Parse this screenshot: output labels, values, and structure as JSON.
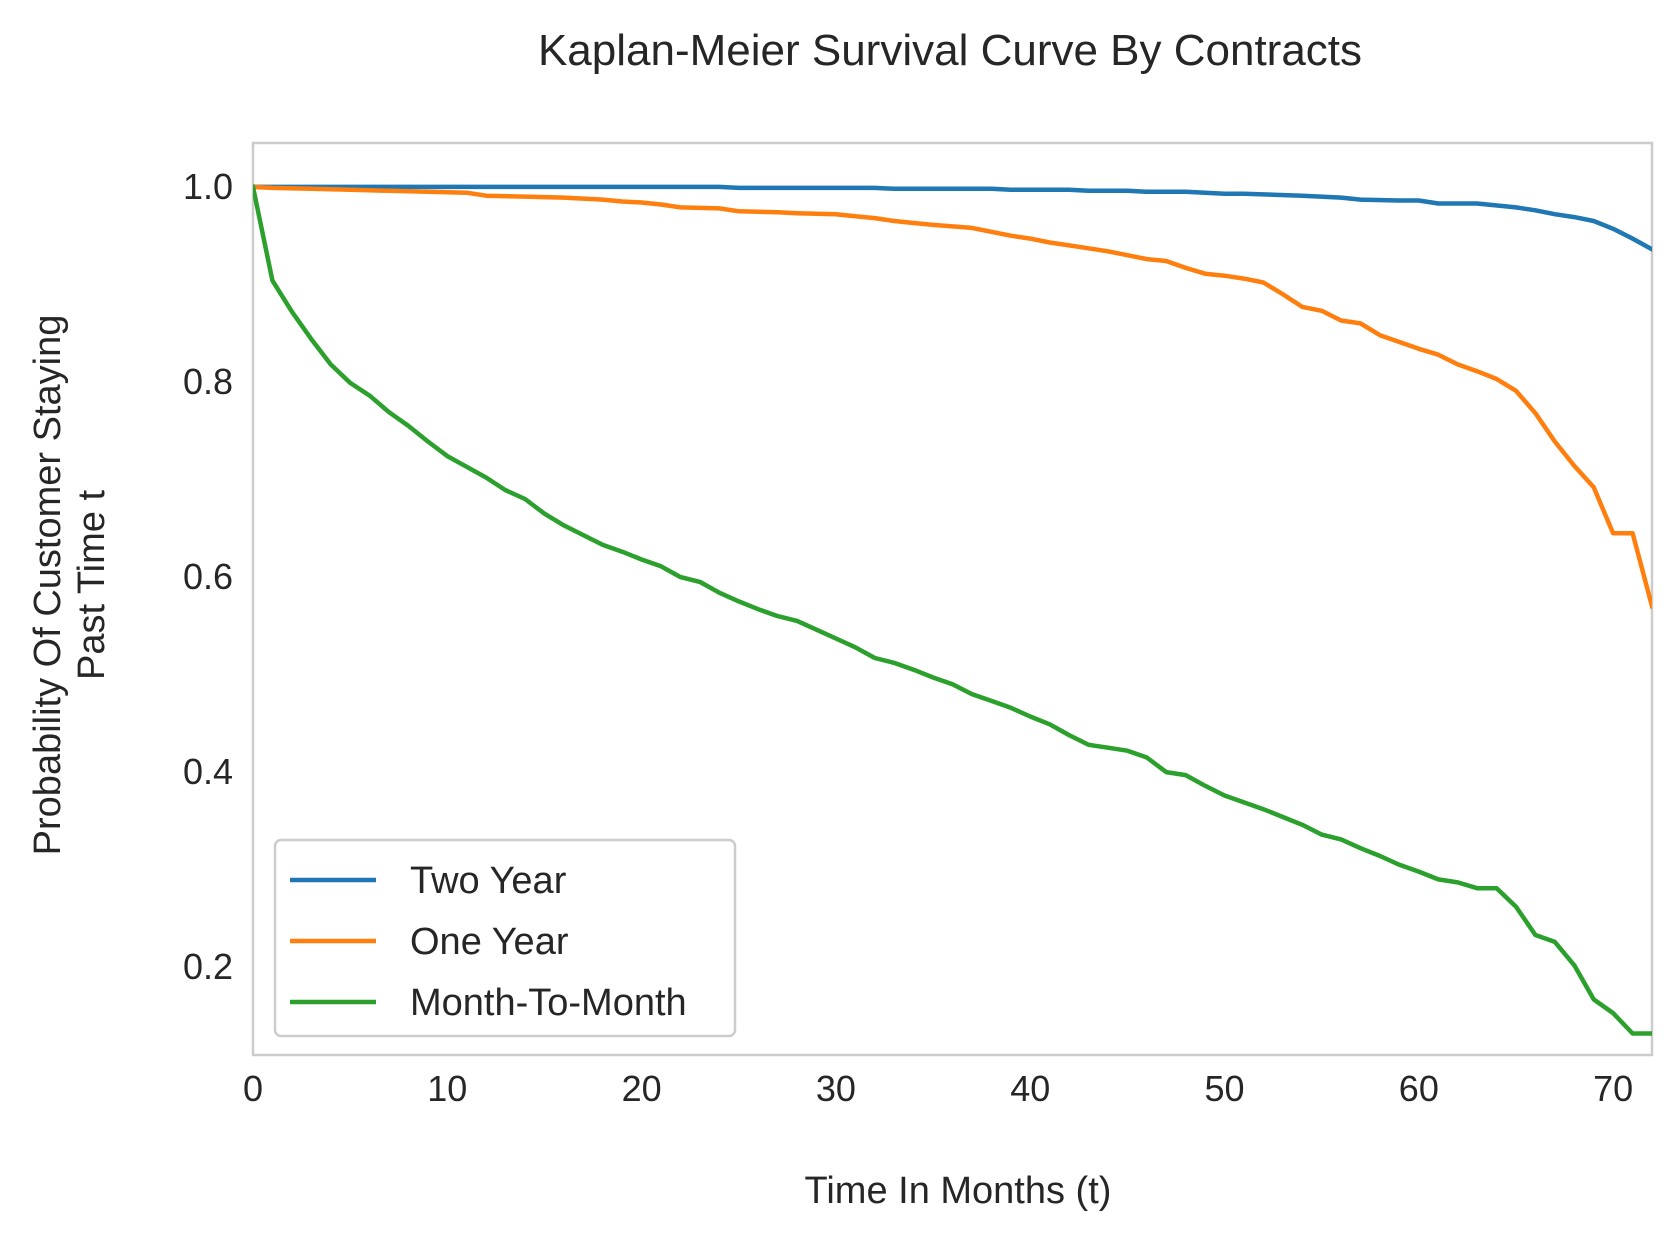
{
  "chart_data": {
    "type": "line",
    "title": "Kaplan-Meier Survival Curve By Contracts",
    "xlabel": "Time In Months (t)",
    "ylabel_lines": [
      "Probability Of Customer Staying",
      "Past Time t"
    ],
    "xlim": [
      0,
      72
    ],
    "ylim": [
      0.11,
      1.045
    ],
    "x_ticks": [
      0,
      10,
      20,
      30,
      40,
      50,
      60,
      70
    ],
    "y_ticks": [
      0.2,
      0.4,
      0.6,
      0.8,
      1.0
    ],
    "x_tick_labels": [
      "0",
      "10",
      "20",
      "30",
      "40",
      "50",
      "60",
      "70"
    ],
    "y_tick_labels": [
      "0.2",
      "0.4",
      "0.6",
      "0.8",
      "1.0"
    ],
    "grid": false,
    "legend_position": "lower-left",
    "series": [
      {
        "name": "Two Year",
        "color": "#1f77b4",
        "points": [
          [
            0,
            1.0
          ],
          [
            24,
            1.0
          ],
          [
            25,
            0.999
          ],
          [
            32,
            0.999
          ],
          [
            33,
            0.998
          ],
          [
            38,
            0.998
          ],
          [
            39,
            0.997
          ],
          [
            42,
            0.997
          ],
          [
            43,
            0.996
          ],
          [
            45,
            0.996
          ],
          [
            46,
            0.995
          ],
          [
            48,
            0.995
          ],
          [
            50,
            0.993
          ],
          [
            51,
            0.993
          ],
          [
            54,
            0.991
          ],
          [
            56,
            0.989
          ],
          [
            57,
            0.987
          ],
          [
            59,
            0.986
          ],
          [
            60,
            0.986
          ],
          [
            61,
            0.983
          ],
          [
            63,
            0.983
          ],
          [
            65,
            0.979
          ],
          [
            66,
            0.976
          ],
          [
            67,
            0.972
          ],
          [
            68,
            0.969
          ],
          [
            69,
            0.965
          ],
          [
            70,
            0.957
          ],
          [
            71,
            0.947
          ],
          [
            72,
            0.936
          ]
        ]
      },
      {
        "name": "One Year",
        "color": "#ff7f0e",
        "points": [
          [
            0,
            1.0
          ],
          [
            1,
            0.999
          ],
          [
            3,
            0.998
          ],
          [
            5,
            0.997
          ],
          [
            7,
            0.996
          ],
          [
            9,
            0.995
          ],
          [
            11,
            0.994
          ],
          [
            12,
            0.991
          ],
          [
            14,
            0.99
          ],
          [
            16,
            0.989
          ],
          [
            18,
            0.987
          ],
          [
            19,
            0.985
          ],
          [
            20,
            0.984
          ],
          [
            21,
            0.982
          ],
          [
            22,
            0.979
          ],
          [
            24,
            0.978
          ],
          [
            25,
            0.975
          ],
          [
            27,
            0.974
          ],
          [
            28,
            0.973
          ],
          [
            30,
            0.972
          ],
          [
            31,
            0.97
          ],
          [
            32,
            0.968
          ],
          [
            33,
            0.965
          ],
          [
            34,
            0.963
          ],
          [
            35,
            0.961
          ],
          [
            37,
            0.958
          ],
          [
            38,
            0.954
          ],
          [
            39,
            0.95
          ],
          [
            40,
            0.947
          ],
          [
            41,
            0.943
          ],
          [
            42,
            0.94
          ],
          [
            43,
            0.937
          ],
          [
            44,
            0.934
          ],
          [
            45,
            0.93
          ],
          [
            46,
            0.926
          ],
          [
            47,
            0.924
          ],
          [
            48,
            0.917
          ],
          [
            49,
            0.911
          ],
          [
            50,
            0.909
          ],
          [
            51,
            0.906
          ],
          [
            52,
            0.902
          ],
          [
            53,
            0.89
          ],
          [
            54,
            0.877
          ],
          [
            55,
            0.873
          ],
          [
            56,
            0.863
          ],
          [
            57,
            0.86
          ],
          [
            58,
            0.848
          ],
          [
            59,
            0.841
          ],
          [
            60,
            0.834
          ],
          [
            61,
            0.828
          ],
          [
            62,
            0.818
          ],
          [
            63,
            0.811
          ],
          [
            64,
            0.803
          ],
          [
            65,
            0.791
          ],
          [
            66,
            0.768
          ],
          [
            67,
            0.739
          ],
          [
            68,
            0.714
          ],
          [
            69,
            0.692
          ],
          [
            70,
            0.645
          ],
          [
            71,
            0.645
          ],
          [
            72,
            0.57
          ]
        ]
      },
      {
        "name": "Month-To-Month",
        "color": "#2ca02c",
        "points": [
          [
            0,
            1.0
          ],
          [
            1,
            0.904
          ],
          [
            2,
            0.872
          ],
          [
            3,
            0.844
          ],
          [
            4,
            0.818
          ],
          [
            5,
            0.799
          ],
          [
            6,
            0.786
          ],
          [
            7,
            0.769
          ],
          [
            8,
            0.755
          ],
          [
            9,
            0.739
          ],
          [
            10,
            0.724
          ],
          [
            11,
            0.713
          ],
          [
            12,
            0.702
          ],
          [
            13,
            0.689
          ],
          [
            14,
            0.68
          ],
          [
            15,
            0.665
          ],
          [
            16,
            0.653
          ],
          [
            17,
            0.643
          ],
          [
            18,
            0.633
          ],
          [
            19,
            0.626
          ],
          [
            20,
            0.618
          ],
          [
            21,
            0.611
          ],
          [
            22,
            0.6
          ],
          [
            23,
            0.595
          ],
          [
            24,
            0.584
          ],
          [
            25,
            0.575
          ],
          [
            26,
            0.567
          ],
          [
            27,
            0.56
          ],
          [
            28,
            0.555
          ],
          [
            29,
            0.546
          ],
          [
            30,
            0.537
          ],
          [
            31,
            0.528
          ],
          [
            32,
            0.517
          ],
          [
            33,
            0.512
          ],
          [
            34,
            0.505
          ],
          [
            35,
            0.497
          ],
          [
            36,
            0.49
          ],
          [
            37,
            0.48
          ],
          [
            38,
            0.473
          ],
          [
            39,
            0.466
          ],
          [
            40,
            0.457
          ],
          [
            41,
            0.449
          ],
          [
            42,
            0.438
          ],
          [
            43,
            0.428
          ],
          [
            44,
            0.425
          ],
          [
            45,
            0.422
          ],
          [
            46,
            0.415
          ],
          [
            47,
            0.4
          ],
          [
            48,
            0.397
          ],
          [
            49,
            0.386
          ],
          [
            50,
            0.376
          ],
          [
            51,
            0.369
          ],
          [
            52,
            0.362
          ],
          [
            53,
            0.354
          ],
          [
            54,
            0.346
          ],
          [
            55,
            0.336
          ],
          [
            56,
            0.331
          ],
          [
            57,
            0.322
          ],
          [
            58,
            0.314
          ],
          [
            59,
            0.305
          ],
          [
            60,
            0.298
          ],
          [
            61,
            0.29
          ],
          [
            62,
            0.287
          ],
          [
            63,
            0.281
          ],
          [
            64,
            0.281
          ],
          [
            65,
            0.262
          ],
          [
            66,
            0.233
          ],
          [
            67,
            0.226
          ],
          [
            68,
            0.202
          ],
          [
            69,
            0.167
          ],
          [
            70,
            0.153
          ],
          [
            71,
            0.132
          ],
          [
            72,
            0.132
          ]
        ]
      }
    ]
  }
}
